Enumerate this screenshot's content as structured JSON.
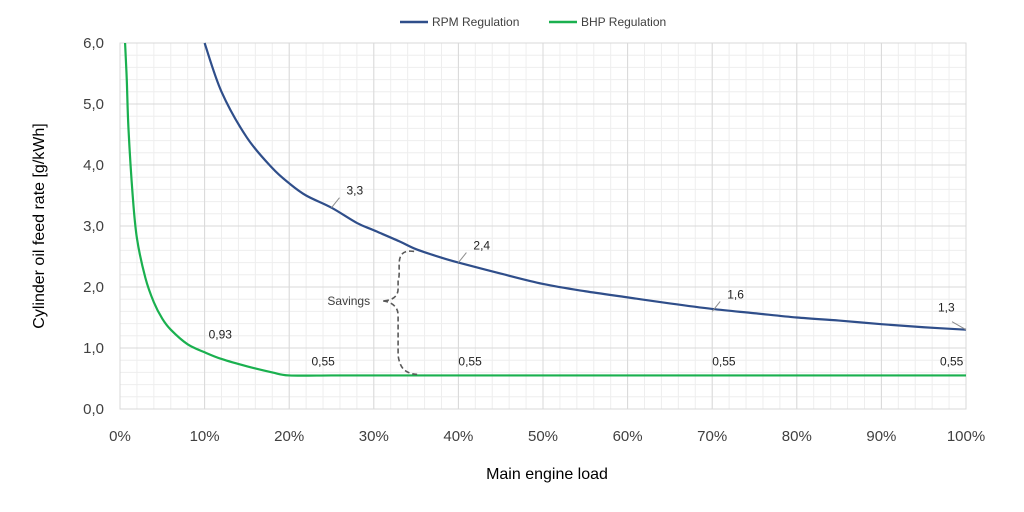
{
  "chart_data": {
    "type": "line",
    "xlabel": "Main engine load",
    "ylabel": "Cylinder oil feed rate [g/kWh]",
    "xlim": [
      0,
      100
    ],
    "ylim": [
      0,
      6
    ],
    "x_tick_labels": [
      "0%",
      "10%",
      "20%",
      "30%",
      "40%",
      "50%",
      "60%",
      "70%",
      "80%",
      "90%",
      "100%"
    ],
    "x_tick_values": [
      0,
      10,
      20,
      30,
      40,
      50,
      60,
      70,
      80,
      90,
      100
    ],
    "y_tick_labels": [
      "0,0",
      "1,0",
      "2,0",
      "3,0",
      "4,0",
      "5,0",
      "6,0"
    ],
    "y_tick_values": [
      0,
      1,
      2,
      3,
      4,
      5,
      6
    ],
    "grid": true,
    "legend_position": "top-center",
    "series": [
      {
        "name": "RPM Regulation",
        "color": "#2f4e8a",
        "x": [
          10,
          12,
          15,
          18,
          20,
          22,
          25,
          28,
          30,
          33,
          35,
          38,
          40,
          45,
          50,
          55,
          60,
          65,
          70,
          75,
          80,
          85,
          90,
          95,
          100
        ],
        "y": [
          6.0,
          5.2,
          4.45,
          3.95,
          3.7,
          3.5,
          3.3,
          3.05,
          2.93,
          2.75,
          2.62,
          2.48,
          2.4,
          2.22,
          2.05,
          1.93,
          1.83,
          1.73,
          1.64,
          1.57,
          1.5,
          1.45,
          1.39,
          1.34,
          1.3
        ]
      },
      {
        "name": "BHP Regulation",
        "color": "#1ab04f",
        "x": [
          0.6,
          0.8,
          1,
          1.5,
          2,
          3,
          4,
          5,
          6,
          8,
          10,
          12,
          15,
          18,
          20,
          25,
          30,
          35,
          40,
          50,
          60,
          70,
          80,
          90,
          100
        ],
        "y": [
          6.0,
          5.4,
          4.6,
          3.5,
          2.8,
          2.15,
          1.75,
          1.48,
          1.3,
          1.06,
          0.93,
          0.82,
          0.7,
          0.6,
          0.55,
          0.55,
          0.55,
          0.55,
          0.55,
          0.55,
          0.55,
          0.55,
          0.55,
          0.55,
          0.55
        ]
      }
    ],
    "data_labels": [
      {
        "series": "RPM Regulation",
        "x": 25,
        "y": 3.3,
        "text": "3,3"
      },
      {
        "series": "RPM Regulation",
        "x": 40,
        "y": 2.4,
        "text": "2,4"
      },
      {
        "series": "RPM Regulation",
        "x": 70,
        "y": 1.6,
        "text": "1,6"
      },
      {
        "series": "RPM Regulation",
        "x": 100,
        "y": 1.3,
        "text": "1,3"
      },
      {
        "series": "BHP Regulation",
        "x": 10,
        "y": 0.93,
        "text": "0,93"
      },
      {
        "series": "BHP Regulation",
        "x": 25,
        "y": 0.55,
        "text": "0,55"
      },
      {
        "series": "BHP Regulation",
        "x": 40,
        "y": 0.55,
        "text": "0,55"
      },
      {
        "series": "BHP Regulation",
        "x": 70,
        "y": 0.55,
        "text": "0,55"
      },
      {
        "series": "BHP Regulation",
        "x": 100,
        "y": 0.55,
        "text": "0,55"
      }
    ],
    "annotation": {
      "text": "Savings",
      "x_from": 35,
      "y_top": 2.6,
      "y_bottom": 0.55
    }
  }
}
